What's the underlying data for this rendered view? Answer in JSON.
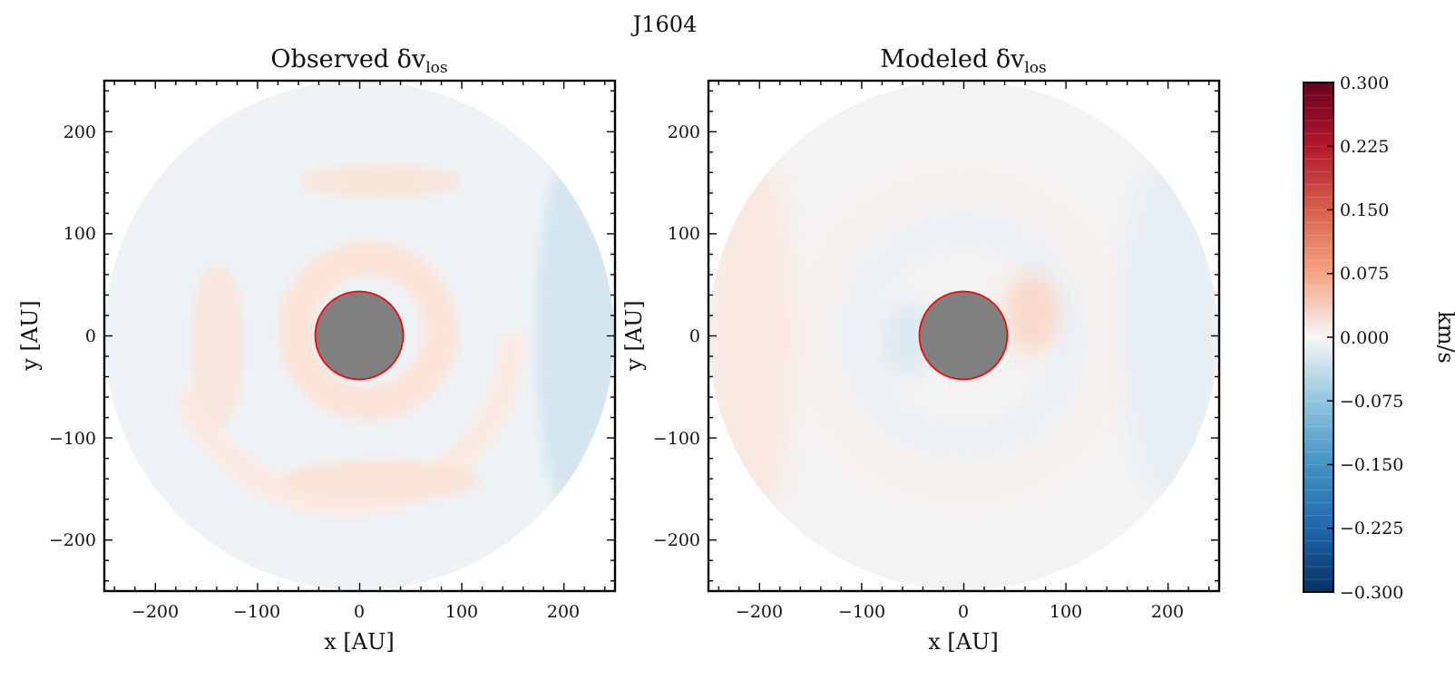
{
  "figure": {
    "suptitle": "J1604"
  },
  "chart_data": [
    {
      "type": "heatmap",
      "title": "Observed δv",
      "title_subscript": "los",
      "xlabel": "x [AU]",
      "ylabel": "y [AU]",
      "xlim": [
        -250,
        250
      ],
      "ylim": [
        -250,
        250
      ],
      "xticks": [
        -200,
        -100,
        0,
        100,
        200
      ],
      "yticks": [
        -200,
        -100,
        0,
        100,
        200
      ],
      "xtick_labels": [
        "−200",
        "−100",
        "0",
        "100",
        "200"
      ],
      "ytick_labels": [
        "−200",
        "−100",
        "0",
        "100",
        "200"
      ],
      "disk_outer_radius_au": 245,
      "masked_inner_radius_au": 43,
      "mask_fill": "#808080",
      "mask_edge": "#ff0000",
      "field_features": [
        {
          "kind": "ring",
          "radius_au": 70,
          "value": 0.04
        },
        {
          "kind": "ring",
          "radius_au": 165,
          "value": 0.035
        },
        {
          "kind": "arc",
          "radius_au": 145,
          "from_deg": 120,
          "to_deg": 200,
          "value": 0.035
        },
        {
          "kind": "region",
          "side": "east-edge",
          "value": -0.05
        }
      ]
    },
    {
      "type": "heatmap",
      "title": "Modeled δv",
      "title_subscript": "los",
      "xlabel": "x [AU]",
      "ylabel": "y [AU]",
      "xlim": [
        -250,
        250
      ],
      "ylim": [
        -250,
        250
      ],
      "xticks": [
        -200,
        -100,
        0,
        100,
        200
      ],
      "yticks": [
        -200,
        -100,
        0,
        100,
        200
      ],
      "xtick_labels": [
        "−200",
        "−100",
        "0",
        "100",
        "200"
      ],
      "ytick_labels": [
        "−200",
        "−100",
        "0",
        "100",
        "200"
      ],
      "disk_outer_radius_au": 245,
      "masked_inner_radius_au": 43,
      "mask_fill": "#808080",
      "mask_edge": "#ff0000",
      "field_features": [
        {
          "kind": "blob",
          "x_au": 65,
          "y_au": 20,
          "value": 0.06
        },
        {
          "kind": "blob",
          "x_au": -60,
          "y_au": -10,
          "value": -0.05
        },
        {
          "kind": "ring",
          "radius_au": 105,
          "value": -0.02
        },
        {
          "kind": "ring",
          "radius_au": 145,
          "value": 0.015
        },
        {
          "kind": "arc",
          "radius_au": 220,
          "from_deg": 110,
          "to_deg": 250,
          "value": 0.03
        },
        {
          "kind": "arc",
          "radius_au": 215,
          "from_deg": -60,
          "to_deg": 40,
          "value": -0.03
        }
      ]
    }
  ],
  "colorbar": {
    "label": "km/s",
    "colormap": "RdBu_r",
    "vmin": -0.3,
    "vmax": 0.3,
    "levels": 40,
    "ticks": [
      0.3,
      0.225,
      0.15,
      0.075,
      0.0,
      -0.075,
      -0.15,
      -0.225,
      -0.3
    ],
    "tick_labels": [
      "0.300",
      "0.225",
      "0.150",
      "0.075",
      "0.000",
      "−0.075",
      "−0.150",
      "−0.225",
      "−0.300"
    ]
  }
}
